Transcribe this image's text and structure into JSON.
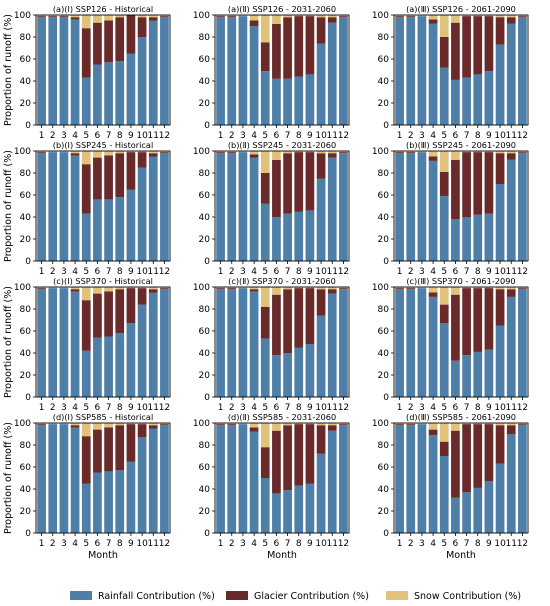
{
  "chart_data": {
    "type": "bar",
    "stacked": true,
    "normalized_percent": true,
    "grid": false,
    "ylim": [
      0,
      100
    ],
    "yticks": [
      0,
      20,
      40,
      60,
      80,
      100
    ],
    "ylabel": "Proportion of runoff (%)",
    "xlabel": "Month",
    "categories": [
      "1",
      "2",
      "3",
      "4",
      "5",
      "6",
      "7",
      "8",
      "9",
      "10",
      "11",
      "12"
    ],
    "legend": {
      "placement": "bottom-center",
      "entries": [
        {
          "name": "Rainfall Contribution (%)",
          "color": "#4e7fa8"
        },
        {
          "name": "Glacier Contribution (%)",
          "color": "#6b2a2a"
        },
        {
          "name": "Snow Contribution (%)",
          "color": "#e0c27a"
        }
      ]
    },
    "panels": [
      {
        "title": "(a)(Ⅰ) SSP126 - Historical",
        "rainfall": [
          98,
          98,
          98,
          96,
          43,
          55,
          57,
          58,
          65,
          80,
          95,
          98
        ],
        "glacier": [
          1,
          1,
          1,
          2,
          45,
          38,
          38,
          40,
          35,
          18,
          3,
          1
        ],
        "snow": [
          1,
          1,
          1,
          2,
          12,
          7,
          5,
          2,
          0,
          2,
          2,
          1
        ]
      },
      {
        "title": "(a)(Ⅱ) SSP126 - 2031-2060",
        "rainfall": [
          98,
          98,
          99,
          90,
          49,
          42,
          42,
          44,
          46,
          74,
          93,
          98
        ],
        "glacier": [
          1,
          1,
          0,
          5,
          26,
          50,
          56,
          55,
          53,
          24,
          5,
          1
        ],
        "snow": [
          1,
          1,
          1,
          5,
          25,
          8,
          2,
          1,
          1,
          2,
          2,
          1
        ]
      },
      {
        "title": "(a)(Ⅲ) SSP126 - 2061-2090",
        "rainfall": [
          98,
          98,
          99,
          92,
          52,
          41,
          43,
          46,
          49,
          73,
          92,
          98
        ],
        "glacier": [
          1,
          1,
          0,
          4,
          28,
          52,
          56,
          53,
          50,
          25,
          6,
          1
        ],
        "snow": [
          1,
          1,
          1,
          4,
          20,
          7,
          1,
          1,
          1,
          2,
          2,
          1
        ]
      },
      {
        "title": "(b)(Ⅰ) SSP245 - Historical",
        "rainfall": [
          98,
          99,
          99,
          96,
          43,
          56,
          56,
          58,
          65,
          85,
          95,
          98
        ],
        "glacier": [
          1,
          0,
          0,
          2,
          45,
          38,
          40,
          40,
          34,
          14,
          3,
          1
        ],
        "snow": [
          1,
          1,
          1,
          2,
          12,
          6,
          4,
          2,
          1,
          1,
          2,
          1
        ]
      },
      {
        "title": "(b)(Ⅱ) SSP245 - 2031-2060",
        "rainfall": [
          98,
          98,
          99,
          94,
          52,
          40,
          43,
          45,
          46,
          75,
          94,
          98
        ],
        "glacier": [
          1,
          1,
          0,
          3,
          28,
          52,
          55,
          54,
          53,
          23,
          4,
          1
        ],
        "snow": [
          1,
          1,
          1,
          3,
          20,
          8,
          2,
          1,
          1,
          2,
          2,
          1
        ]
      },
      {
        "title": "(b)(Ⅲ) SSP245 - 2061-2090",
        "rainfall": [
          98,
          98,
          99,
          91,
          59,
          38,
          40,
          42,
          43,
          70,
          92,
          98
        ],
        "glacier": [
          1,
          1,
          0,
          4,
          22,
          54,
          59,
          57,
          56,
          28,
          6,
          1
        ],
        "snow": [
          1,
          1,
          1,
          5,
          19,
          8,
          1,
          1,
          1,
          2,
          2,
          1
        ]
      },
      {
        "title": "(c)(Ⅰ) SSP370 - Historical",
        "rainfall": [
          98,
          99,
          99,
          96,
          42,
          54,
          55,
          58,
          67,
          84,
          95,
          98
        ],
        "glacier": [
          1,
          0,
          0,
          2,
          46,
          40,
          41,
          40,
          32,
          15,
          3,
          1
        ],
        "snow": [
          1,
          1,
          1,
          2,
          12,
          6,
          4,
          2,
          1,
          1,
          2,
          1
        ]
      },
      {
        "title": "(c)(Ⅱ) SSP370 - 2031-2060",
        "rainfall": [
          98,
          98,
          99,
          96,
          53,
          38,
          40,
          45,
          48,
          74,
          94,
          98
        ],
        "glacier": [
          1,
          1,
          0,
          2,
          29,
          55,
          58,
          54,
          51,
          24,
          4,
          1
        ],
        "snow": [
          1,
          1,
          1,
          2,
          18,
          7,
          2,
          1,
          1,
          2,
          2,
          1
        ]
      },
      {
        "title": "(c)(Ⅲ) SSP370 - 2061-2090",
        "rainfall": [
          98,
          98,
          99,
          91,
          67,
          33,
          38,
          41,
          43,
          65,
          91,
          98
        ],
        "glacier": [
          1,
          1,
          0,
          4,
          17,
          60,
          61,
          58,
          56,
          33,
          7,
          1
        ],
        "snow": [
          1,
          1,
          1,
          5,
          16,
          7,
          1,
          1,
          1,
          2,
          2,
          1
        ]
      },
      {
        "title": "(d)(Ⅰ) SSP585 - Historical",
        "rainfall": [
          98,
          99,
          99,
          96,
          45,
          55,
          56,
          57,
          65,
          87,
          95,
          98
        ],
        "glacier": [
          1,
          0,
          0,
          2,
          43,
          39,
          40,
          41,
          34,
          12,
          3,
          1
        ],
        "snow": [
          1,
          1,
          1,
          2,
          12,
          6,
          4,
          2,
          1,
          1,
          2,
          1
        ]
      },
      {
        "title": "(d)(Ⅱ) SSP585 - 2031-2060",
        "rainfall": [
          98,
          98,
          99,
          92,
          50,
          36,
          39,
          43,
          45,
          72,
          93,
          98
        ],
        "glacier": [
          1,
          1,
          0,
          4,
          28,
          57,
          59,
          56,
          54,
          26,
          5,
          1
        ],
        "snow": [
          1,
          1,
          1,
          4,
          22,
          7,
          2,
          1,
          1,
          2,
          2,
          1
        ]
      },
      {
        "title": "(d)(Ⅲ) SSP585 - 2061-2090",
        "rainfall": [
          98,
          98,
          99,
          89,
          70,
          32,
          37,
          41,
          47,
          63,
          90,
          98
        ],
        "glacier": [
          1,
          1,
          0,
          5,
          13,
          61,
          62,
          58,
          52,
          35,
          8,
          1
        ],
        "snow": [
          1,
          1,
          1,
          6,
          17,
          7,
          1,
          1,
          1,
          2,
          2,
          1
        ]
      }
    ]
  }
}
